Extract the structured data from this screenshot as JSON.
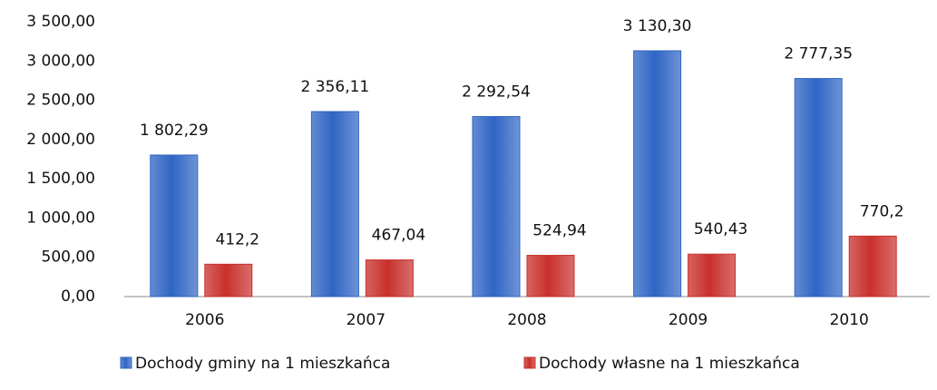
{
  "chart_data": {
    "type": "bar",
    "categories": [
      "2006",
      "2007",
      "2008",
      "2009",
      "2010"
    ],
    "series": [
      {
        "name": "Dochody gminy na 1 mieszkańca",
        "color": "#2f65c4",
        "values": [
          1802.29,
          2356.11,
          2292.54,
          3130.3,
          2777.35
        ],
        "value_labels": [
          "1 802,29",
          "2 356,11",
          "2 292,54",
          "3 130,30",
          "2 777,35"
        ]
      },
      {
        "name": "Dochody własne na 1 mieszkańca",
        "color": "#c8302c",
        "values": [
          412.2,
          467.04,
          524.94,
          540.43,
          770.2
        ],
        "value_labels": [
          "412,2",
          "467,04",
          "524,94",
          "540,43",
          "770,2"
        ]
      }
    ],
    "ylim": [
      0,
      3500
    ],
    "yticks": [
      {
        "value": 0,
        "label": "0,00"
      },
      {
        "value": 500,
        "label": "500,00"
      },
      {
        "value": 1000,
        "label": "1 000,00"
      },
      {
        "value": 1500,
        "label": "1 500,00"
      },
      {
        "value": 2000,
        "label": "2 000,00"
      },
      {
        "value": 2500,
        "label": "2 500,00"
      },
      {
        "value": 3000,
        "label": "3 000,00"
      },
      {
        "value": 3500,
        "label": "3 500,00"
      }
    ],
    "grid": false,
    "legend": "bottom"
  }
}
